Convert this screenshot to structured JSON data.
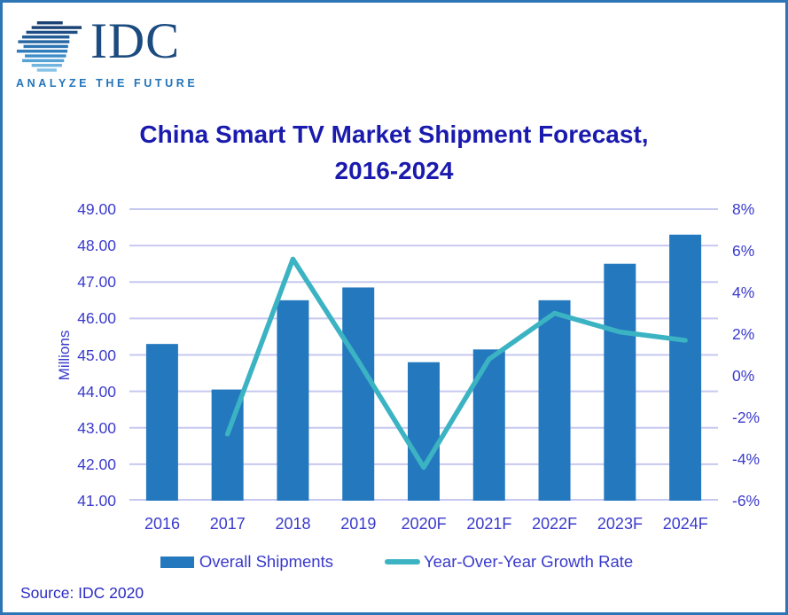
{
  "logo": {
    "brand": "IDC",
    "tagline": "ANALYZE THE FUTURE"
  },
  "title": {
    "line1": "China Smart TV Market Shipment Forecast,",
    "line2": "2016-2024"
  },
  "source": "Source: IDC 2020",
  "colors": {
    "bar": "#2478be",
    "line": "#3bb3c3",
    "grid": "#c6c8f0",
    "axis_text": "#3a3acc",
    "title_text": "#1a1aae",
    "border": "#2e75b6"
  },
  "legend": [
    {
      "label": "Overall Shipments",
      "marker": "bar"
    },
    {
      "label": "Year-Over-Year Growth Rate",
      "marker": "line"
    }
  ],
  "chart_data": {
    "type": "bar",
    "subtype": "bar+line combo",
    "title": "China Smart TV Market Shipment Forecast, 2016-2024",
    "categories": [
      "2016",
      "2017",
      "2018",
      "2019",
      "2020F",
      "2021F",
      "2022F",
      "2023F",
      "2024F"
    ],
    "series": [
      {
        "name": "Overall Shipments",
        "type": "bar",
        "axis": "left",
        "values": [
          45.3,
          44.05,
          46.5,
          46.85,
          44.8,
          45.15,
          46.5,
          47.5,
          48.3
        ]
      },
      {
        "name": "Year-Over-Year Growth Rate",
        "type": "line",
        "axis": "right",
        "values": [
          null,
          -2.8,
          5.6,
          0.7,
          -4.4,
          0.8,
          3.0,
          2.1,
          1.7
        ]
      }
    ],
    "left_axis": {
      "label": "Millions",
      "min": 41,
      "max": 49,
      "step": 1,
      "tick_format": "two_decimals"
    },
    "right_axis": {
      "label": "",
      "min": -6,
      "max": 8,
      "step": 2,
      "tick_format": "percent"
    },
    "grid": true,
    "legend_position": "bottom"
  }
}
